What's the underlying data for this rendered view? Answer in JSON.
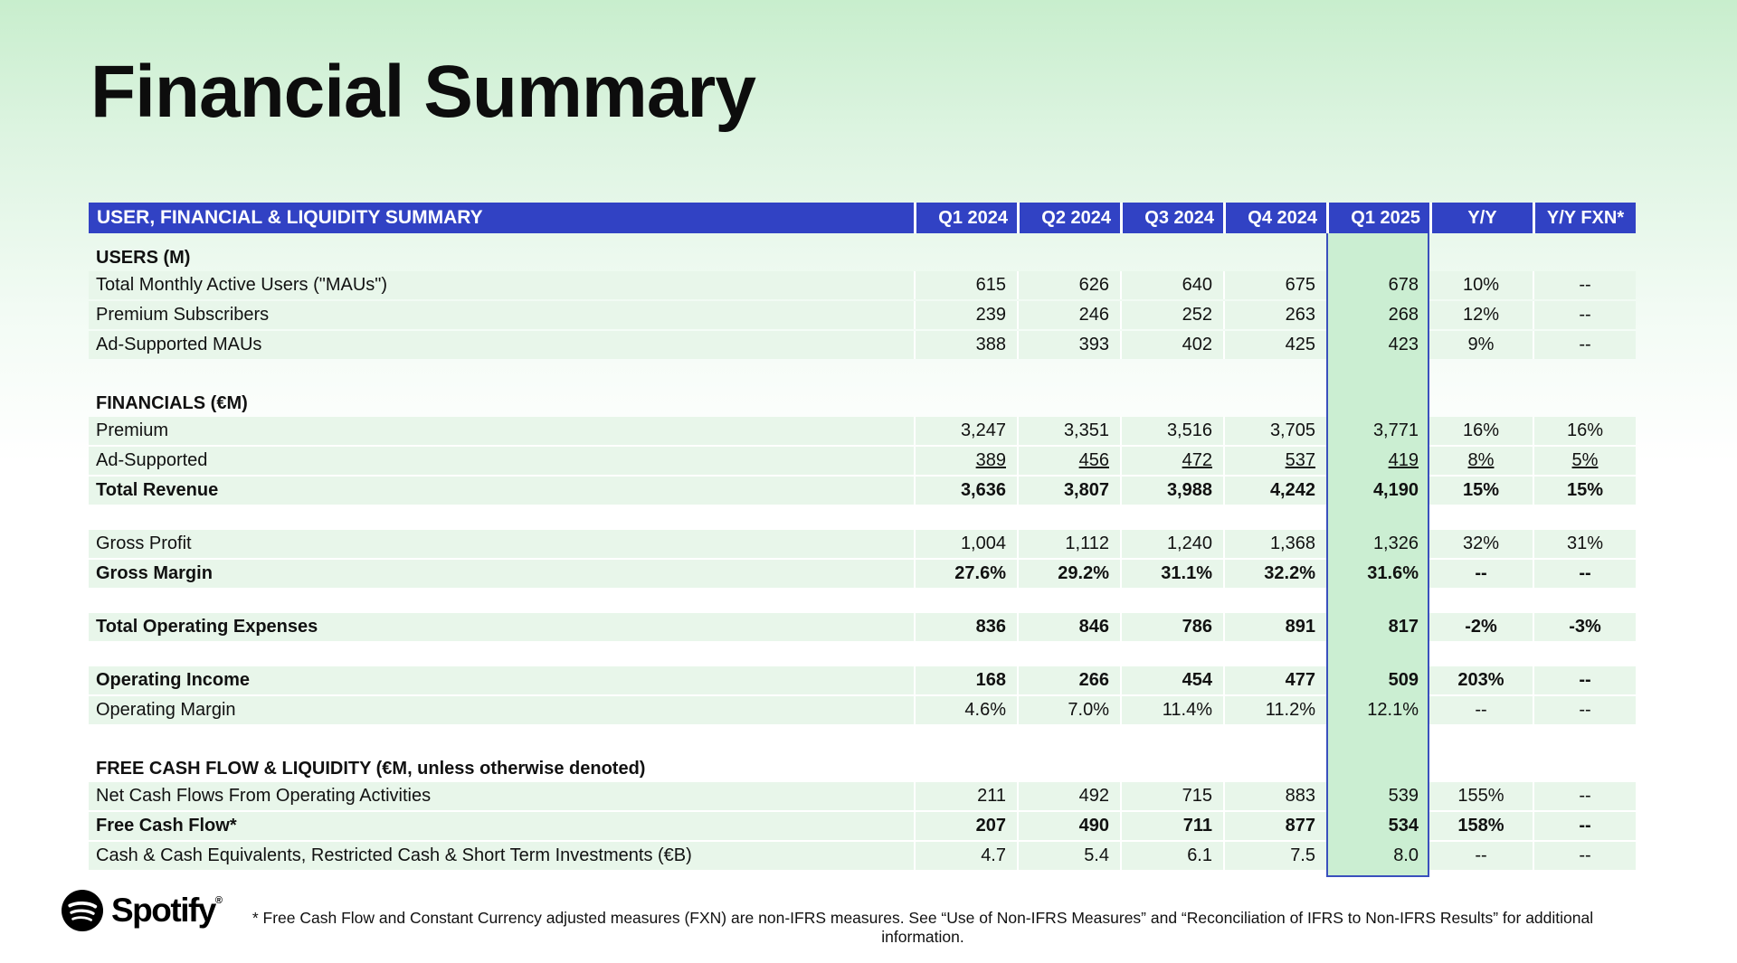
{
  "page": {
    "title": "Financial Summary",
    "footnote": "* Free Cash Flow and Constant Currency adjusted measures (FXN) are non-IFRS measures. See “Use of Non-IFRS Measures” and “Reconciliation of IFRS to Non-IFRS Results” for additional information.",
    "logo_text": "Spotify",
    "logo_mark": "®",
    "logo_icon": "spotify-icon"
  },
  "colors": {
    "header_blue": "#3142c4",
    "highlight_border": "#3a50bd",
    "highlight_green": "#cbeed2",
    "row_stripe_green": "#e8f6ea",
    "background_top": "#c8eecd",
    "background_bottom": "#ffffff"
  },
  "table": {
    "title": "USER, FINANCIAL & LIQUIDITY SUMMARY",
    "columns": [
      "Q1 2024",
      "Q2 2024",
      "Q3 2024",
      "Q4 2024",
      "Q1 2025",
      "Y/Y",
      "Y/Y FXN*"
    ],
    "highlight_column": "Q1 2025",
    "sections": [
      {
        "header": "USERS (M)",
        "rows": [
          {
            "label": "Total Monthly Active Users (\"MAUs\")",
            "bold": false,
            "underline": false,
            "values": [
              "615",
              "626",
              "640",
              "675",
              "678",
              "10%",
              "--"
            ]
          },
          {
            "label": "Premium Subscribers",
            "bold": false,
            "underline": false,
            "values": [
              "239",
              "246",
              "252",
              "263",
              "268",
              "12%",
              "--"
            ]
          },
          {
            "label": "Ad-Supported MAUs",
            "bold": false,
            "underline": false,
            "values": [
              "388",
              "393",
              "402",
              "425",
              "423",
              "9%",
              "--"
            ]
          }
        ]
      },
      {
        "header": "FINANCIALS (€M)",
        "rows": [
          {
            "label": "Premium",
            "bold": false,
            "underline": false,
            "values": [
              "3,247",
              "3,351",
              "3,516",
              "3,705",
              "3,771",
              "16%",
              "16%"
            ]
          },
          {
            "label": "Ad-Supported",
            "bold": false,
            "underline": true,
            "values": [
              "389",
              "456",
              "472",
              "537",
              "419",
              "8%",
              "5%"
            ]
          },
          {
            "label": "Total Revenue",
            "bold": true,
            "underline": false,
            "values": [
              "3,636",
              "3,807",
              "3,988",
              "4,242",
              "4,190",
              "15%",
              "15%"
            ]
          }
        ]
      },
      {
        "header": null,
        "rows": [
          {
            "label": "Gross Profit",
            "bold": false,
            "underline": false,
            "values": [
              "1,004",
              "1,112",
              "1,240",
              "1,368",
              "1,326",
              "32%",
              "31%"
            ]
          },
          {
            "label": "Gross Margin",
            "bold": true,
            "underline": false,
            "values": [
              "27.6%",
              "29.2%",
              "31.1%",
              "32.2%",
              "31.6%",
              "--",
              "--"
            ]
          }
        ]
      },
      {
        "header": null,
        "rows": [
          {
            "label": "Total Operating Expenses",
            "bold": true,
            "underline": false,
            "values": [
              "836",
              "846",
              "786",
              "891",
              "817",
              "-2%",
              "-3%"
            ]
          }
        ]
      },
      {
        "header": null,
        "rows": [
          {
            "label": "Operating Income",
            "bold": true,
            "underline": false,
            "values": [
              "168",
              "266",
              "454",
              "477",
              "509",
              "203%",
              "--"
            ]
          },
          {
            "label": "Operating Margin",
            "bold": false,
            "underline": false,
            "values": [
              "4.6%",
              "7.0%",
              "11.4%",
              "11.2%",
              "12.1%",
              "--",
              "--"
            ]
          }
        ]
      },
      {
        "header": "FREE CASH FLOW & LIQUIDITY (€M, unless otherwise denoted)",
        "rows": [
          {
            "label": "Net Cash Flows From Operating Activities",
            "bold": false,
            "underline": false,
            "values": [
              "211",
              "492",
              "715",
              "883",
              "539",
              "155%",
              "--"
            ]
          },
          {
            "label": "Free Cash Flow*",
            "bold": true,
            "underline": false,
            "values": [
              "207",
              "490",
              "711",
              "877",
              "534",
              "158%",
              "--"
            ]
          },
          {
            "label": "Cash & Cash Equivalents, Restricted Cash & Short Term Investments (€B)",
            "bold": false,
            "underline": false,
            "values": [
              "4.7",
              "5.4",
              "6.1",
              "7.5",
              "8.0",
              "--",
              "--"
            ]
          }
        ]
      }
    ]
  }
}
